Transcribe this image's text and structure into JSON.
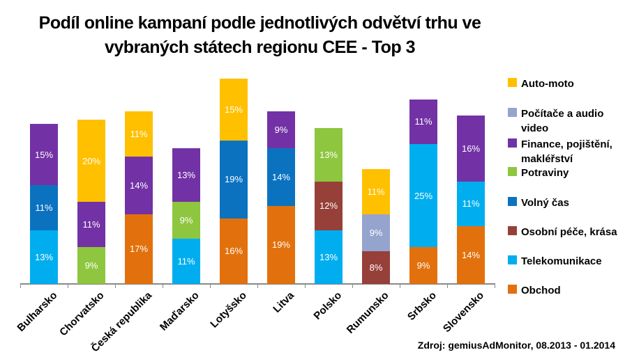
{
  "title": {
    "line1": "Podíl online kampaní podle jednotlivých odvětví trhu ve",
    "line2": "vybraných státech regionu CEE - Top 3"
  },
  "source": "Zdroj: gemiusAdMonitor, 08.2013 - 01.2014",
  "chart_data": {
    "type": "bar",
    "stacked": true,
    "unit": "%",
    "grid": false,
    "legend_position": "right",
    "categories": [
      "Bulharsko",
      "Chorvatsko",
      "Česká republika",
      "Maďarsko",
      "Lotyšsko",
      "Litva",
      "Polsko",
      "Rumunsko",
      "Srbsko",
      "Slovensko"
    ],
    "legend": [
      {
        "label": "Auto-moto",
        "color": "#FFC000"
      },
      {
        "label": "Počítače a audio video",
        "color": "#95A4CE"
      },
      {
        "label": "Finance, pojištění, makléřství",
        "color": "#7232A5"
      },
      {
        "label": "Potraviny",
        "color": "#8EC63F"
      },
      {
        "label": "Volný čas",
        "color": "#0B72C0"
      },
      {
        "label": "Osobní péče, krása",
        "color": "#964039"
      },
      {
        "label": "Telekomunikace",
        "color": "#00AEEF"
      },
      {
        "label": "Obchod",
        "color": "#E2710D"
      }
    ],
    "bars": [
      {
        "country": "Bulharsko",
        "segments": [
          {
            "sector": "Telekomunikace",
            "value": 13
          },
          {
            "sector": "Volný čas",
            "value": 11
          },
          {
            "sector": "Finance, pojištění, makléřství",
            "value": 15
          }
        ]
      },
      {
        "country": "Chorvatsko",
        "segments": [
          {
            "sector": "Potraviny",
            "value": 9
          },
          {
            "sector": "Finance, pojištění, makléřství",
            "value": 11
          },
          {
            "sector": "Auto-moto",
            "value": 20
          }
        ]
      },
      {
        "country": "Česká republika",
        "segments": [
          {
            "sector": "Obchod",
            "value": 17
          },
          {
            "sector": "Finance, pojištění, makléřství",
            "value": 14
          },
          {
            "sector": "Auto-moto",
            "value": 11
          }
        ]
      },
      {
        "country": "Maďarsko",
        "segments": [
          {
            "sector": "Telekomunikace",
            "value": 11
          },
          {
            "sector": "Potraviny",
            "value": 9
          },
          {
            "sector": "Finance, pojištění, makléřství",
            "value": 13
          }
        ]
      },
      {
        "country": "Lotyšsko",
        "segments": [
          {
            "sector": "Obchod",
            "value": 16
          },
          {
            "sector": "Volný čas",
            "value": 19
          },
          {
            "sector": "Auto-moto",
            "value": 15
          }
        ]
      },
      {
        "country": "Litva",
        "segments": [
          {
            "sector": "Obchod",
            "value": 19
          },
          {
            "sector": "Volný čas",
            "value": 14
          },
          {
            "sector": "Finance, pojištění, makléřství",
            "value": 9
          }
        ]
      },
      {
        "country": "Polsko",
        "segments": [
          {
            "sector": "Telekomunikace",
            "value": 13
          },
          {
            "sector": "Osobní péče, krása",
            "value": 12
          },
          {
            "sector": "Potraviny",
            "value": 13
          }
        ]
      },
      {
        "country": "Rumunsko",
        "segments": [
          {
            "sector": "Osobní péče, krása",
            "value": 8
          },
          {
            "sector": "Počítače a audio video",
            "value": 9
          },
          {
            "sector": "Auto-moto",
            "value": 11
          }
        ]
      },
      {
        "country": "Srbsko",
        "segments": [
          {
            "sector": "Obchod",
            "value": 9
          },
          {
            "sector": "Telekomunikace",
            "value": 25
          },
          {
            "sector": "Finance, pojištění, makléřství",
            "value": 11
          }
        ]
      },
      {
        "country": "Slovensko",
        "segments": [
          {
            "sector": "Obchod",
            "value": 14
          },
          {
            "sector": "Telekomunikace",
            "value": 11
          },
          {
            "sector": "Finance, pojištění, makléřství",
            "value": 16
          }
        ]
      }
    ]
  }
}
